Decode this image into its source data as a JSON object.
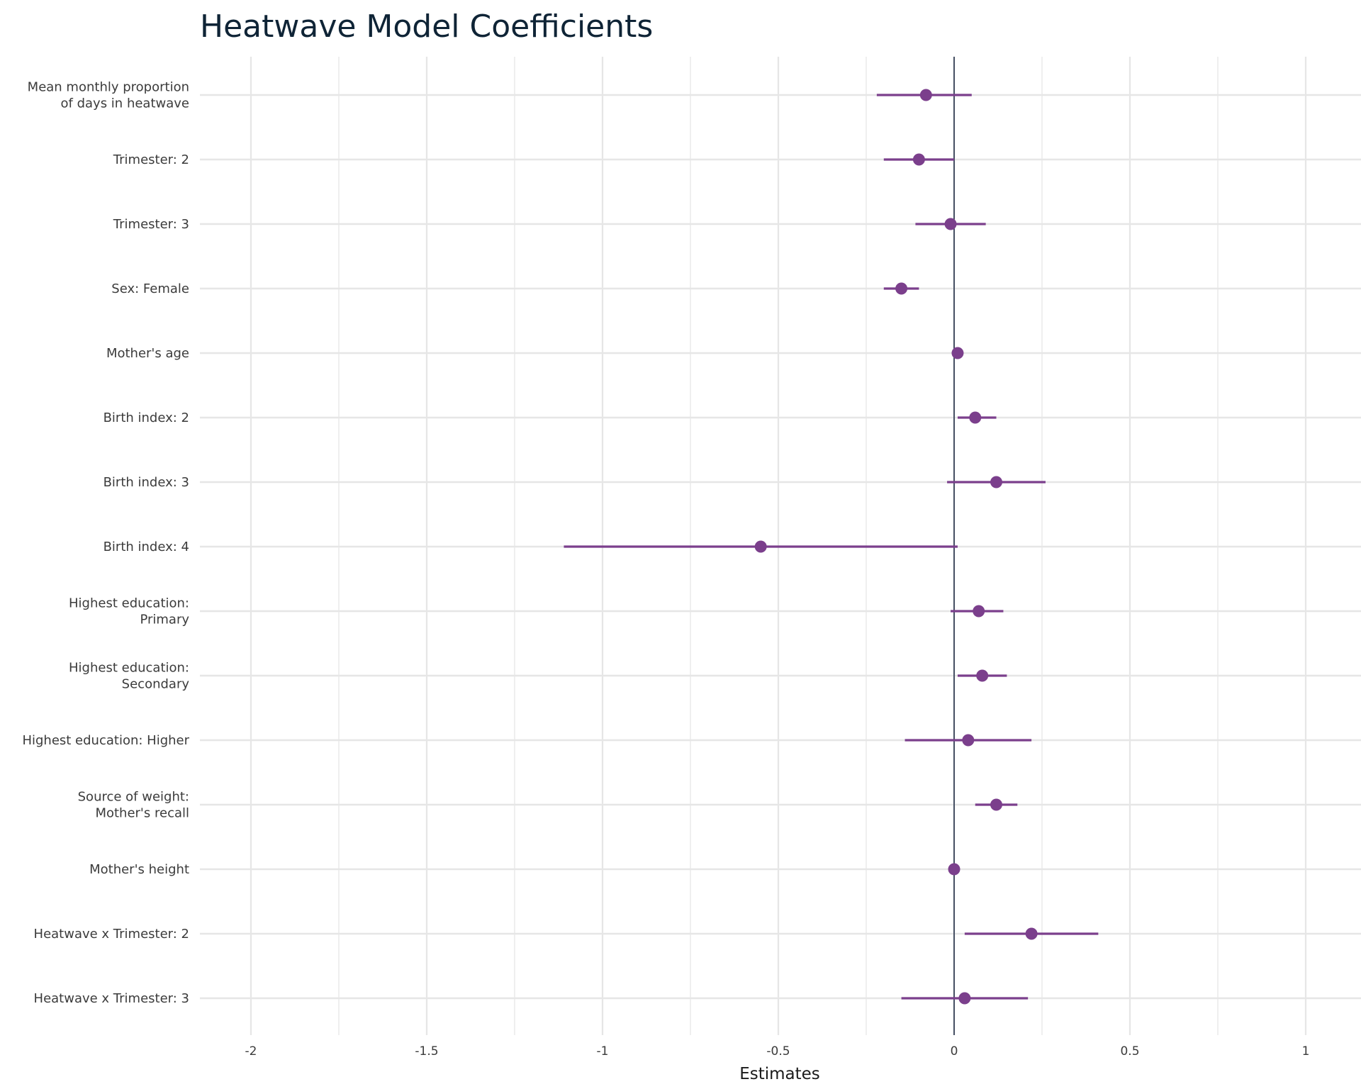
{
  "chart_data": {
    "type": "scatter",
    "subtype": "coefficient-plot",
    "title": "Heatwave Model Coefficients",
    "xlabel": "Estimates",
    "ylabel": "",
    "xlim": [
      -2.15,
      1.15
    ],
    "x_ticks": [
      -2,
      -1.5,
      -1,
      -0.5,
      0,
      0.5,
      1
    ],
    "x_tick_labels": [
      "-2",
      "-1.5",
      "-1",
      "-0.5",
      "0",
      "0.5",
      "1"
    ],
    "reference_line": 0,
    "grid": true,
    "legend": "none",
    "point_color": "#7b3f8c",
    "reference_line_color": "#1f2a44",
    "grid_color": "#e6e6e6",
    "terms": [
      {
        "label": [
          "Mean monthly proportion",
          "of days in heatwave"
        ],
        "estimate": -0.08,
        "low": -0.22,
        "high": 0.05
      },
      {
        "label": [
          "Trimester: 2"
        ],
        "estimate": -0.1,
        "low": -0.2,
        "high": 0.0
      },
      {
        "label": [
          "Trimester: 3"
        ],
        "estimate": -0.01,
        "low": -0.11,
        "high": 0.09
      },
      {
        "label": [
          "Sex: Female"
        ],
        "estimate": -0.15,
        "low": -0.2,
        "high": -0.1
      },
      {
        "label": [
          "Mother's age"
        ],
        "estimate": 0.01,
        "low": 0.0,
        "high": 0.02
      },
      {
        "label": [
          "Birth index: 2"
        ],
        "estimate": 0.06,
        "low": 0.01,
        "high": 0.12
      },
      {
        "label": [
          "Birth index: 3"
        ],
        "estimate": 0.12,
        "low": -0.02,
        "high": 0.26
      },
      {
        "label": [
          "Birth index: 4"
        ],
        "estimate": -0.55,
        "low": -1.11,
        "high": 0.01
      },
      {
        "label": [
          "Highest education:",
          "Primary"
        ],
        "estimate": 0.07,
        "low": -0.01,
        "high": 0.14
      },
      {
        "label": [
          "Highest education:",
          "Secondary"
        ],
        "estimate": 0.08,
        "low": 0.01,
        "high": 0.15
      },
      {
        "label": [
          "Highest education: Higher"
        ],
        "estimate": 0.04,
        "low": -0.14,
        "high": 0.22
      },
      {
        "label": [
          "Source of weight:",
          "Mother's recall"
        ],
        "estimate": 0.12,
        "low": 0.06,
        "high": 0.18
      },
      {
        "label": [
          "Mother's height"
        ],
        "estimate": 0.0,
        "low": 0.0,
        "high": 0.0
      },
      {
        "label": [
          "Heatwave x Trimester: 2"
        ],
        "estimate": 0.22,
        "low": 0.03,
        "high": 0.41
      },
      {
        "label": [
          "Heatwave x Trimester: 3"
        ],
        "estimate": 0.03,
        "low": -0.15,
        "high": 0.21
      }
    ]
  }
}
